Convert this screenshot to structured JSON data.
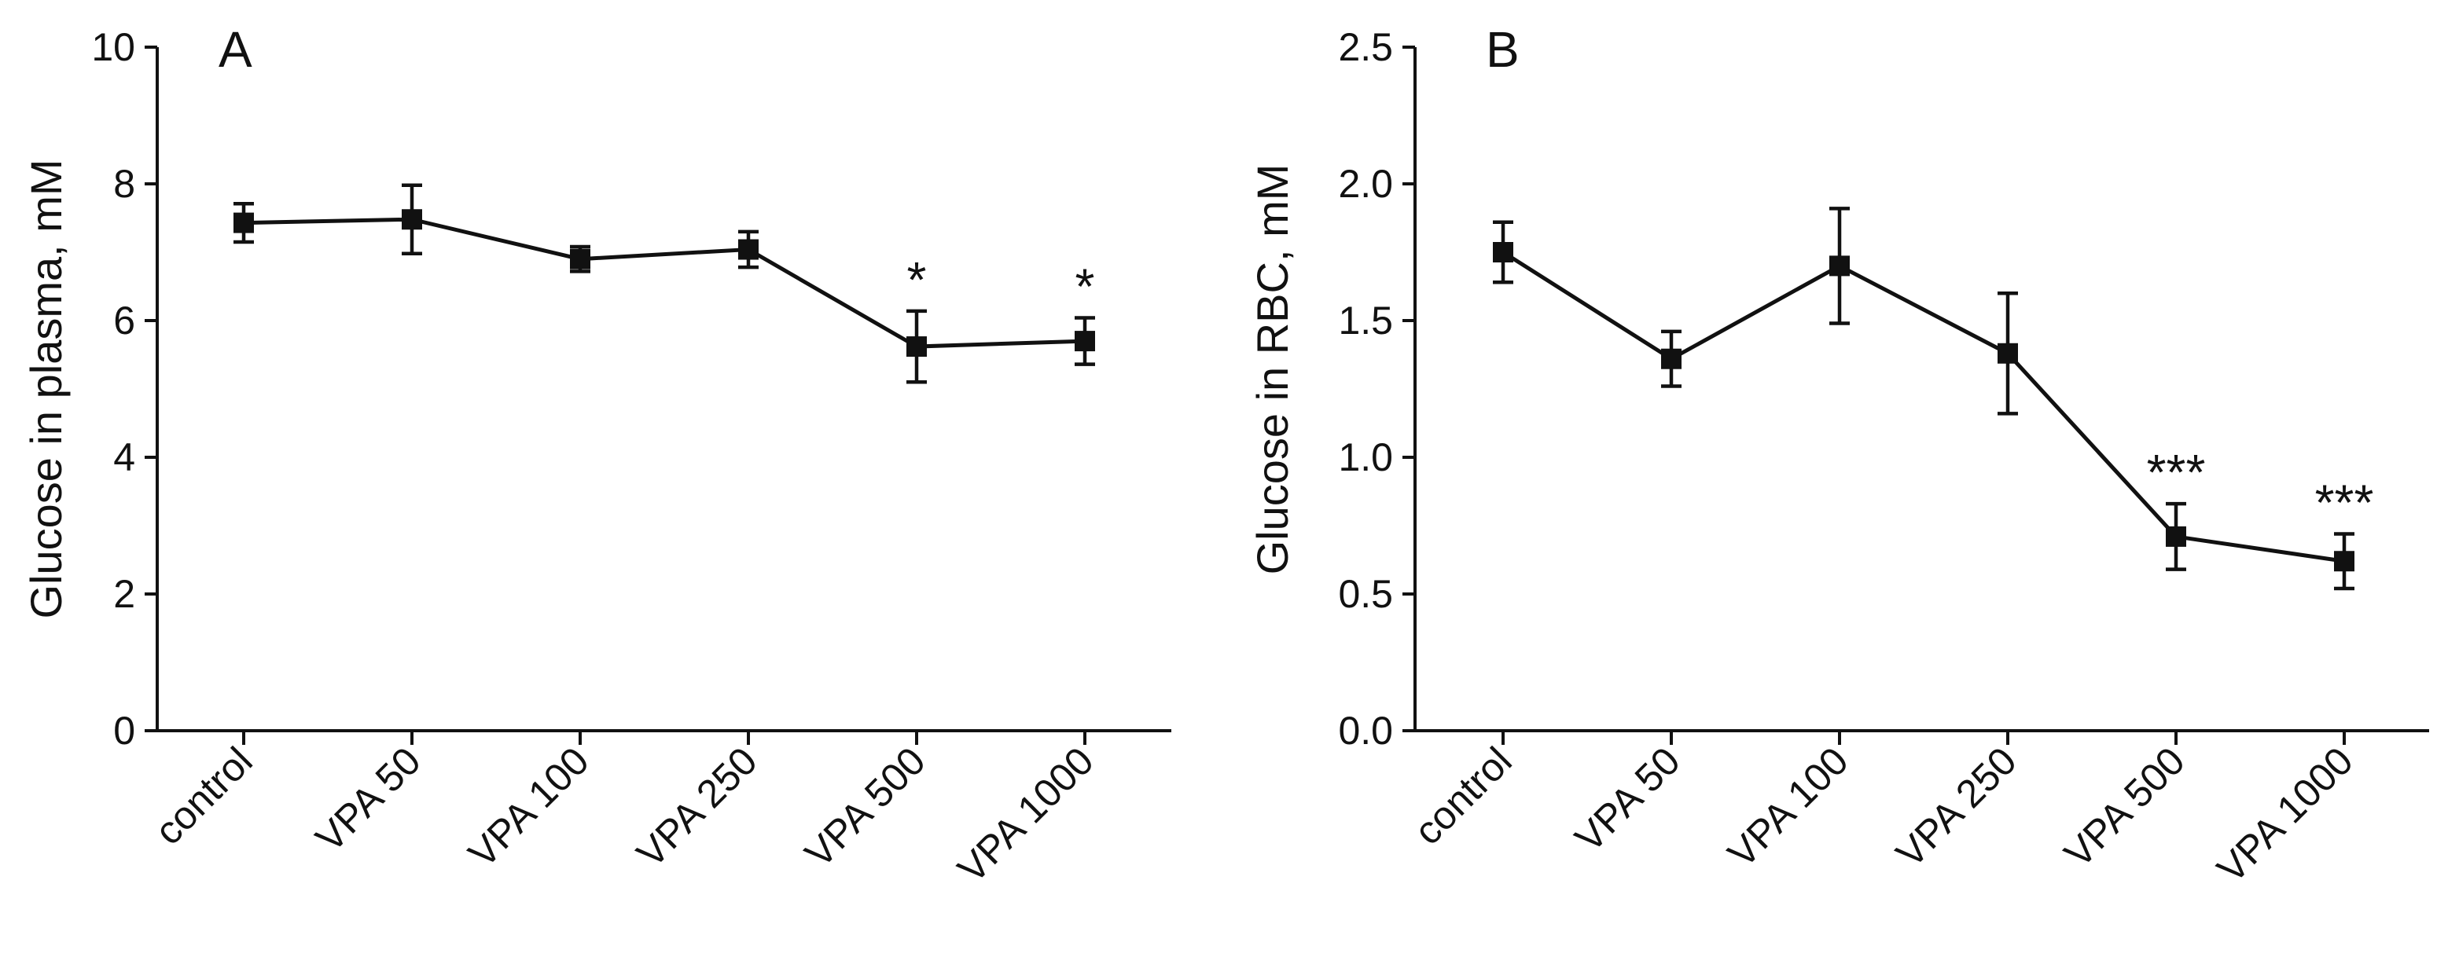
{
  "chart_data": [
    {
      "type": "line",
      "panel_label": "A",
      "title": "",
      "xlabel": "",
      "ylabel": "Glucose in plasma, mM",
      "ylim": [
        0,
        10
      ],
      "yticks": [
        0,
        2,
        4,
        6,
        8,
        10
      ],
      "ytick_labels": [
        "0",
        "2",
        "4",
        "6",
        "8",
        "10"
      ],
      "categories": [
        "control",
        "VPA 50",
        "VPA 100",
        "VPA 250",
        "VPA 500",
        "VPA 1000"
      ],
      "series": [
        {
          "name": "Glucose in plasma",
          "values": [
            7.43,
            7.48,
            6.9,
            7.04,
            5.62,
            5.7
          ],
          "errors": [
            0.28,
            0.5,
            0.18,
            0.26,
            0.52,
            0.34
          ]
        }
      ],
      "annotations": [
        "",
        "",
        "",
        "",
        "*",
        "*"
      ]
    },
    {
      "type": "line",
      "panel_label": "B",
      "title": "",
      "xlabel": "",
      "ylabel": "Glucose in RBC, mM",
      "ylim": [
        0,
        2.5
      ],
      "yticks": [
        0,
        0.5,
        1,
        1.5,
        2,
        2.5
      ],
      "ytick_labels": [
        "0.0",
        "0.5",
        "1.0",
        "1.5",
        "2.0",
        "2.5"
      ],
      "categories": [
        "control",
        "VPA 50",
        "VPA 100",
        "VPA 250",
        "VPA 500",
        "VPA 1000"
      ],
      "series": [
        {
          "name": "Glucose in RBC",
          "values": [
            1.75,
            1.36,
            1.7,
            1.38,
            0.71,
            0.62
          ],
          "errors": [
            0.11,
            0.1,
            0.21,
            0.22,
            0.12,
            0.1
          ]
        }
      ],
      "annotations": [
        "",
        "",
        "",
        "",
        "***",
        "***"
      ]
    }
  ]
}
